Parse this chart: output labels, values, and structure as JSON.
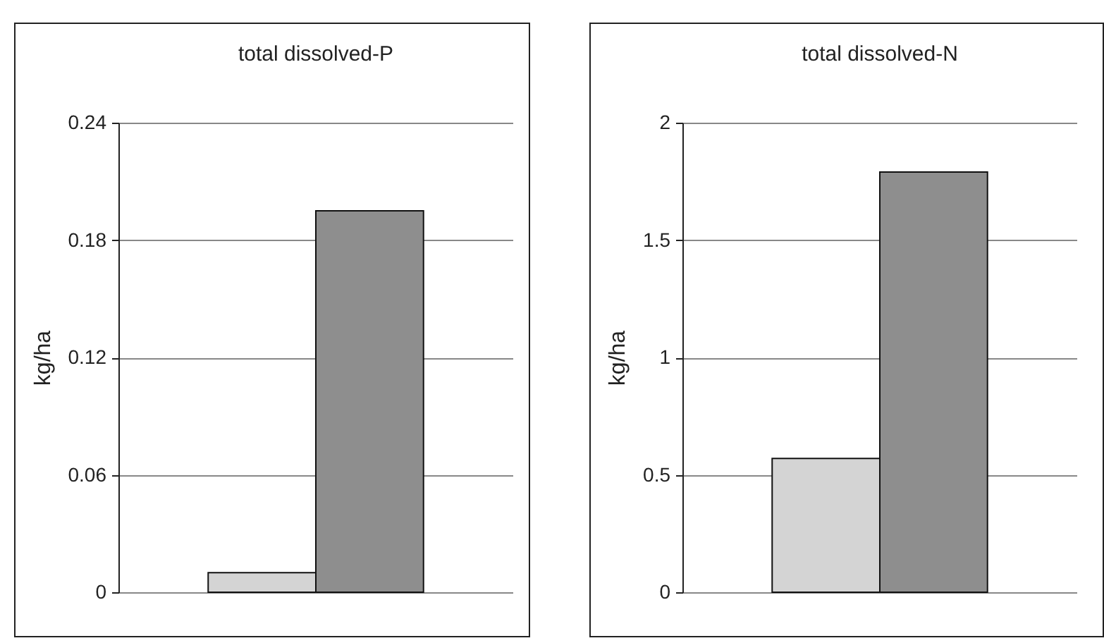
{
  "chart_data": [
    {
      "type": "bar",
      "title": "total dissolved-P",
      "ylabel": "kg/ha",
      "categories": [
        null
      ],
      "series": [
        {
          "color": "#d4d4d4",
          "values": [
            0.01
          ]
        },
        {
          "color": "#8e8e8e",
          "values": [
            0.195
          ]
        }
      ],
      "ylim": [
        0,
        0.24
      ],
      "yticks": [
        0,
        0.06,
        0.12,
        0.18,
        0.24
      ],
      "grid": "y"
    },
    {
      "type": "bar",
      "title": "total dissolved-N",
      "ylabel": "kg/ha",
      "categories": [
        null
      ],
      "series": [
        {
          "color": "#d4d4d4",
          "values": [
            0.57
          ]
        },
        {
          "color": "#8e8e8e",
          "values": [
            1.79
          ]
        }
      ],
      "ylim": [
        0,
        2
      ],
      "yticks": [
        0,
        0.5,
        1,
        1.5,
        2
      ],
      "grid": "y"
    }
  ]
}
